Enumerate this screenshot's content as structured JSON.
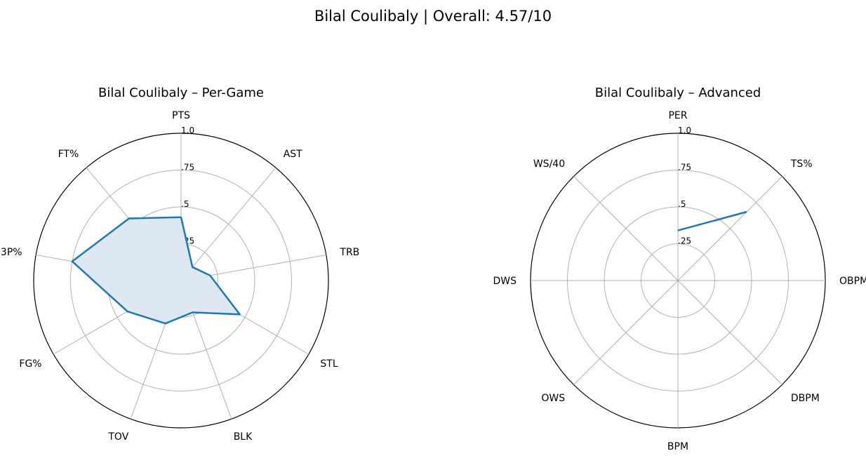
{
  "figure": {
    "suptitle": "Bilal Coulibaly | Overall: 4.57/10"
  },
  "chart_data": [
    {
      "type": "radar",
      "title": "Bilal Coulibaly – Per-Game",
      "axes": [
        "PTS",
        "AST",
        "TRB",
        "STL",
        "BLK",
        "TOV",
        "FG%",
        "3P%",
        "FT%"
      ],
      "values": [
        0.43,
        0.12,
        0.2,
        0.46,
        0.23,
        0.31,
        0.42,
        0.75,
        0.55
      ],
      "rticks": [
        0.25,
        0.5,
        0.75,
        1.0
      ],
      "rtick_labels": [
        ".25",
        ".5",
        ".75",
        "1.0"
      ],
      "rlim": [
        0,
        1
      ],
      "filled": true,
      "color": "#1f77b4",
      "fill_color": "#dee8f2",
      "grid": true
    },
    {
      "type": "radar",
      "title": "Bilal Coulibaly – Advanced",
      "axes": [
        "PER",
        "TS%",
        "OBPM",
        "DBPM",
        "BPM",
        "OWS",
        "DWS",
        "WS/40"
      ],
      "values": [
        0.34,
        0.66,
        null,
        null,
        null,
        null,
        null,
        null
      ],
      "rticks": [
        0.25,
        0.5,
        0.75,
        1.0
      ],
      "rtick_labels": [
        ".25",
        ".5",
        ".75",
        "1.0"
      ],
      "rlim": [
        0,
        1
      ],
      "filled": false,
      "color": "#1f77b4",
      "grid": true
    }
  ]
}
